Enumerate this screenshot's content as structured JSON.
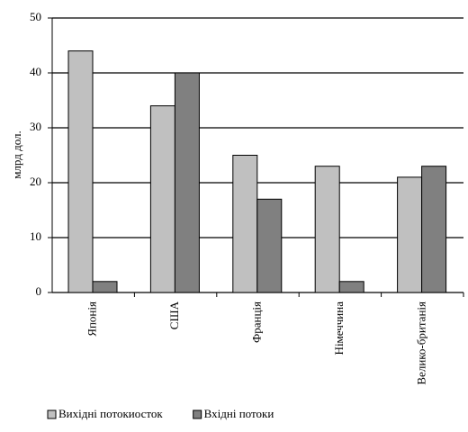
{
  "chart_data": {
    "type": "bar",
    "y_label": "млрд дол.",
    "categories": [
      "Японія",
      "США",
      "Франція",
      "Німеччина",
      "Велико-британія"
    ],
    "series": [
      {
        "name": "Вихідні потокиосток",
        "color": "#c0c0c0",
        "values": [
          44,
          34,
          25,
          23,
          21
        ]
      },
      {
        "name": "Вхідні потоки",
        "color": "#808080",
        "values": [
          2,
          40,
          17,
          2,
          23
        ]
      }
    ],
    "ylim": [
      0,
      50
    ],
    "yticks": [
      0,
      10,
      20,
      30,
      40,
      50
    ],
    "grid": true,
    "legend": "bottom"
  }
}
